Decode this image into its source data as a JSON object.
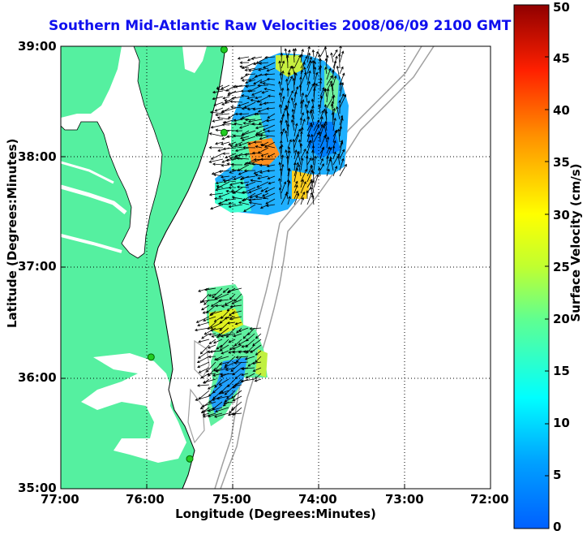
{
  "title": "Southern Mid-Atlantic Raw Velocities 2008/06/09 2100 GMT",
  "xlabel": "Longitude (Degrees:Minutes)",
  "ylabel": "Latitude (Degrees:Minutes)",
  "colorbar": {
    "label": "Surface Velocity (cm/s)",
    "ticks": [
      "0",
      "5",
      "10",
      "15",
      "20",
      "25",
      "30",
      "35",
      "40",
      "45",
      "50"
    ],
    "range": [
      0,
      50
    ],
    "colormap": "jet"
  },
  "map": {
    "x_ticks": [
      "77:00",
      "76:00",
      "75:00",
      "74:00",
      "73:00",
      "72:00"
    ],
    "y_ticks": [
      "39:00",
      "38:00",
      "37:00",
      "36:00",
      "35:00"
    ],
    "lon_range": [
      -77,
      -72
    ],
    "lat_range": [
      35,
      39
    ],
    "grid": true,
    "colors": {
      "land": "#55f0a0",
      "background": "#ffffff",
      "bathymetry": "#a0a0a0",
      "station": "#22cc22",
      "arrows": "#000000"
    },
    "stations": [
      {
        "lon": -75.1,
        "lat": 38.97
      },
      {
        "lon": -75.1,
        "lat": 38.22
      },
      {
        "lon": -75.95,
        "lat": 36.19
      },
      {
        "lon": -75.5,
        "lat": 35.27
      }
    ]
  }
}
